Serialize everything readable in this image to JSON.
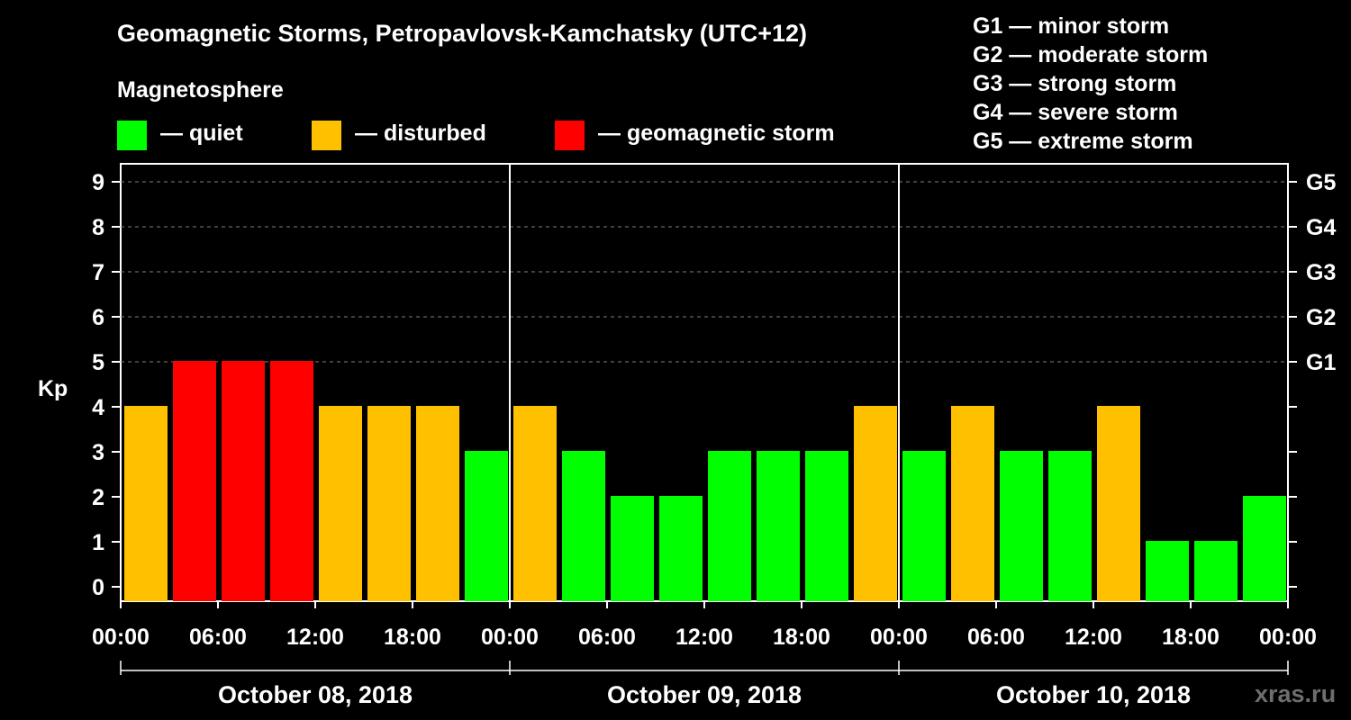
{
  "header": {
    "title": "Geomagnetic Storms, Petropavlovsk-Kamchatsky (UTC+12)",
    "magnetosphere_label": "Magnetosphere"
  },
  "legend": {
    "quiet": {
      "label": "— quiet",
      "color": "#00ff00"
    },
    "disturbed": {
      "label": "— disturbed",
      "color": "#ffc000"
    },
    "storm": {
      "label": "— geomagnetic storm",
      "color": "#ff0000"
    }
  },
  "g_legend": [
    "G1 — minor storm",
    "G2 — moderate storm",
    "G3 — strong storm",
    "G4 — severe storm",
    "G5 — extreme storm"
  ],
  "watermark": "xras.ru",
  "chart_data": {
    "type": "bar",
    "ylabel": "Kp",
    "ylim": [
      0,
      9
    ],
    "yticks": [
      "0",
      "1",
      "2",
      "3",
      "4",
      "5",
      "6",
      "7",
      "8",
      "9"
    ],
    "right_ticks": [
      {
        "kp": 5,
        "label": "G1"
      },
      {
        "kp": 6,
        "label": "G2"
      },
      {
        "kp": 7,
        "label": "G3"
      },
      {
        "kp": 8,
        "label": "G4"
      },
      {
        "kp": 9,
        "label": "G5"
      }
    ],
    "xticks": [
      "00:00",
      "06:00",
      "12:00",
      "18:00",
      "00:00",
      "06:00",
      "12:00",
      "18:00",
      "00:00",
      "06:00",
      "12:00",
      "18:00",
      "00:00"
    ],
    "days": [
      "October 08, 2018",
      "October 09, 2018",
      "October 10, 2018"
    ],
    "values": [
      4,
      5,
      5,
      5,
      4,
      4,
      4,
      3,
      4,
      3,
      2,
      2,
      3,
      3,
      3,
      4,
      3,
      4,
      3,
      3,
      4,
      1,
      1,
      2
    ],
    "gridlines_kp": [
      5,
      6,
      7,
      8,
      9
    ]
  }
}
